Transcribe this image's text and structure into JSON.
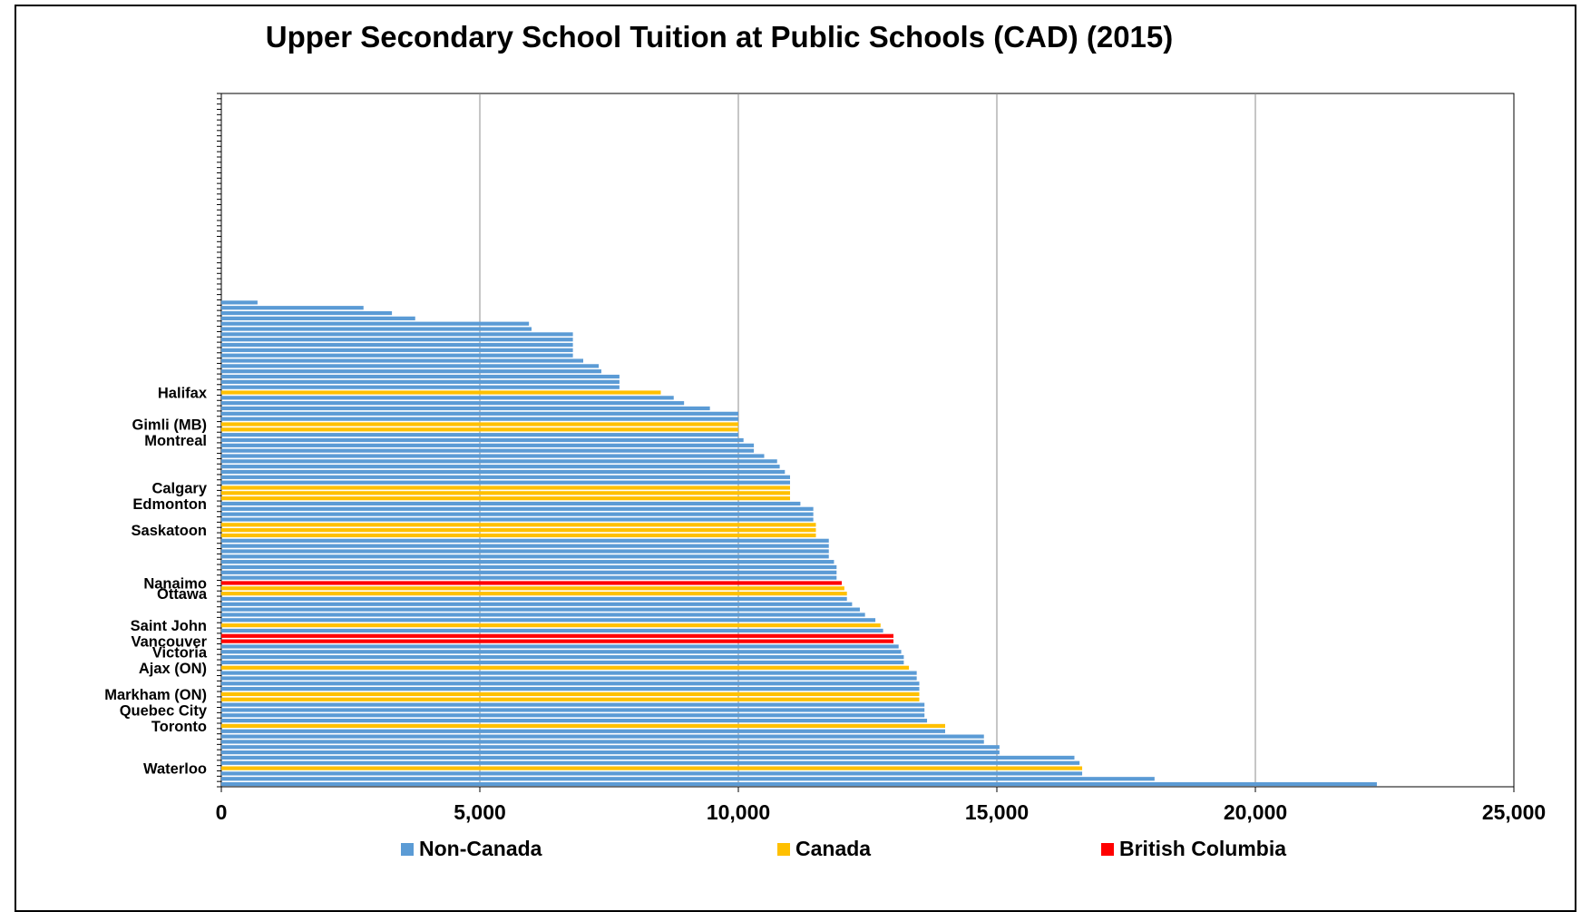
{
  "chart_data": {
    "type": "bar",
    "orientation": "horizontal",
    "title": "Upper Secondary School Tuition at Public Schools (CAD) (2015)",
    "xlabel": "",
    "ylabel": "",
    "xlim": [
      0,
      25000
    ],
    "x_ticks": [
      0,
      5000,
      10000,
      15000,
      20000,
      25000
    ],
    "x_tick_labels": [
      "0",
      "5,000",
      "10,000",
      "15,000",
      "20,000",
      "25,000"
    ],
    "grid": "vertical",
    "legend_position": "bottom",
    "colors": {
      "Non-Canada": "#5B9BD5",
      "Canada": "#FFC000",
      "British Columbia": "#FF0000"
    },
    "legend": [
      "Non-Canada",
      "Canada",
      "British Columbia"
    ],
    "slots_total": 131,
    "bars": [
      {
        "label": "",
        "value": 700,
        "group": "Non-Canada"
      },
      {
        "label": "",
        "value": 2750,
        "group": "Non-Canada"
      },
      {
        "label": "",
        "value": 3300,
        "group": "Non-Canada"
      },
      {
        "label": "",
        "value": 3750,
        "group": "Non-Canada"
      },
      {
        "label": "",
        "value": 5950,
        "group": "Non-Canada"
      },
      {
        "label": "",
        "value": 6000,
        "group": "Non-Canada"
      },
      {
        "label": "",
        "value": 6800,
        "group": "Non-Canada"
      },
      {
        "label": "",
        "value": 6800,
        "group": "Non-Canada"
      },
      {
        "label": "",
        "value": 6800,
        "group": "Non-Canada"
      },
      {
        "label": "",
        "value": 6800,
        "group": "Non-Canada"
      },
      {
        "label": "",
        "value": 6800,
        "group": "Non-Canada"
      },
      {
        "label": "",
        "value": 7000,
        "group": "Non-Canada"
      },
      {
        "label": "",
        "value": 7300,
        "group": "Non-Canada"
      },
      {
        "label": "",
        "value": 7350,
        "group": "Non-Canada"
      },
      {
        "label": "",
        "value": 7700,
        "group": "Non-Canada"
      },
      {
        "label": "",
        "value": 7700,
        "group": "Non-Canada"
      },
      {
        "label": "",
        "value": 7700,
        "group": "Non-Canada"
      },
      {
        "label": "Halifax",
        "value": 8500,
        "group": "Canada"
      },
      {
        "label": "",
        "value": 8750,
        "group": "Non-Canada"
      },
      {
        "label": "",
        "value": 8950,
        "group": "Non-Canada"
      },
      {
        "label": "",
        "value": 9450,
        "group": "Non-Canada"
      },
      {
        "label": "",
        "value": 10000,
        "group": "Non-Canada"
      },
      {
        "label": "",
        "value": 10000,
        "group": "Non-Canada"
      },
      {
        "label": "Gimli (MB)",
        "value": 10000,
        "group": "Canada"
      },
      {
        "label": "",
        "value": 10000,
        "group": "Canada"
      },
      {
        "label": "",
        "value": 10000,
        "group": "Non-Canada"
      },
      {
        "label": "Montreal",
        "value": 10100,
        "group": "Non-Canada"
      },
      {
        "label": "",
        "value": 10300,
        "group": "Non-Canada"
      },
      {
        "label": "",
        "value": 10300,
        "group": "Non-Canada"
      },
      {
        "label": "",
        "value": 10500,
        "group": "Non-Canada"
      },
      {
        "label": "",
        "value": 10750,
        "group": "Non-Canada"
      },
      {
        "label": "",
        "value": 10800,
        "group": "Non-Canada"
      },
      {
        "label": "",
        "value": 10900,
        "group": "Non-Canada"
      },
      {
        "label": "",
        "value": 11000,
        "group": "Non-Canada"
      },
      {
        "label": "",
        "value": 11000,
        "group": "Non-Canada"
      },
      {
        "label": "Calgary",
        "value": 11000,
        "group": "Canada"
      },
      {
        "label": "",
        "value": 11000,
        "group": "Canada"
      },
      {
        "label": "",
        "value": 11000,
        "group": "Canada"
      },
      {
        "label": "Edmonton",
        "value": 11200,
        "group": "Non-Canada"
      },
      {
        "label": "",
        "value": 11450,
        "group": "Non-Canada"
      },
      {
        "label": "",
        "value": 11450,
        "group": "Non-Canada"
      },
      {
        "label": "",
        "value": 11450,
        "group": "Non-Canada"
      },
      {
        "label": "",
        "value": 11500,
        "group": "Canada"
      },
      {
        "label": "Saskatoon",
        "value": 11500,
        "group": "Canada"
      },
      {
        "label": "",
        "value": 11500,
        "group": "Canada"
      },
      {
        "label": "",
        "value": 11750,
        "group": "Non-Canada"
      },
      {
        "label": "",
        "value": 11750,
        "group": "Non-Canada"
      },
      {
        "label": "",
        "value": 11750,
        "group": "Non-Canada"
      },
      {
        "label": "",
        "value": 11750,
        "group": "Non-Canada"
      },
      {
        "label": "",
        "value": 11850,
        "group": "Non-Canada"
      },
      {
        "label": "",
        "value": 11900,
        "group": "Non-Canada"
      },
      {
        "label": "",
        "value": 11900,
        "group": "Non-Canada"
      },
      {
        "label": "",
        "value": 11900,
        "group": "Non-Canada"
      },
      {
        "label": "Nanaimo",
        "value": 12000,
        "group": "British Columbia"
      },
      {
        "label": "",
        "value": 12050,
        "group": "Canada"
      },
      {
        "label": "Ottawa",
        "value": 12100,
        "group": "Canada"
      },
      {
        "label": "",
        "value": 12100,
        "group": "Non-Canada"
      },
      {
        "label": "",
        "value": 12200,
        "group": "Non-Canada"
      },
      {
        "label": "",
        "value": 12350,
        "group": "Non-Canada"
      },
      {
        "label": "",
        "value": 12450,
        "group": "Non-Canada"
      },
      {
        "label": "",
        "value": 12650,
        "group": "Non-Canada"
      },
      {
        "label": "Saint John",
        "value": 12750,
        "group": "Canada"
      },
      {
        "label": "",
        "value": 12800,
        "group": "Non-Canada"
      },
      {
        "label": "",
        "value": 13000,
        "group": "British Columbia"
      },
      {
        "label": "Vancouver",
        "value": 13000,
        "group": "British Columbia"
      },
      {
        "label": "",
        "value": 13100,
        "group": "Non-Canada"
      },
      {
        "label": "Victoria",
        "value": 13150,
        "group": "Non-Canada"
      },
      {
        "label": "",
        "value": 13200,
        "group": "Non-Canada"
      },
      {
        "label": "",
        "value": 13200,
        "group": "Non-Canada"
      },
      {
        "label": "Ajax (ON)",
        "value": 13300,
        "group": "Canada"
      },
      {
        "label": "",
        "value": 13450,
        "group": "Non-Canada"
      },
      {
        "label": "",
        "value": 13450,
        "group": "Non-Canada"
      },
      {
        "label": "",
        "value": 13500,
        "group": "Non-Canada"
      },
      {
        "label": "",
        "value": 13500,
        "group": "Non-Canada"
      },
      {
        "label": "Markham (ON)",
        "value": 13500,
        "group": "Canada"
      },
      {
        "label": "",
        "value": 13500,
        "group": "Canada"
      },
      {
        "label": "",
        "value": 13600,
        "group": "Non-Canada"
      },
      {
        "label": "Quebec City",
        "value": 13600,
        "group": "Non-Canada"
      },
      {
        "label": "",
        "value": 13600,
        "group": "Non-Canada"
      },
      {
        "label": "",
        "value": 13650,
        "group": "Non-Canada"
      },
      {
        "label": "Toronto",
        "value": 14000,
        "group": "Canada"
      },
      {
        "label": "",
        "value": 14000,
        "group": "Non-Canada"
      },
      {
        "label": "",
        "value": 14750,
        "group": "Non-Canada"
      },
      {
        "label": "",
        "value": 14750,
        "group": "Non-Canada"
      },
      {
        "label": "",
        "value": 15050,
        "group": "Non-Canada"
      },
      {
        "label": "",
        "value": 15050,
        "group": "Non-Canada"
      },
      {
        "label": "",
        "value": 16500,
        "group": "Non-Canada"
      },
      {
        "label": "",
        "value": 16600,
        "group": "Non-Canada"
      },
      {
        "label": "Waterloo",
        "value": 16650,
        "group": "Canada"
      },
      {
        "label": "",
        "value": 16650,
        "group": "Non-Canada"
      },
      {
        "label": "",
        "value": 18050,
        "group": "Non-Canada"
      },
      {
        "label": "",
        "value": 22350,
        "group": "Non-Canada"
      }
    ]
  }
}
